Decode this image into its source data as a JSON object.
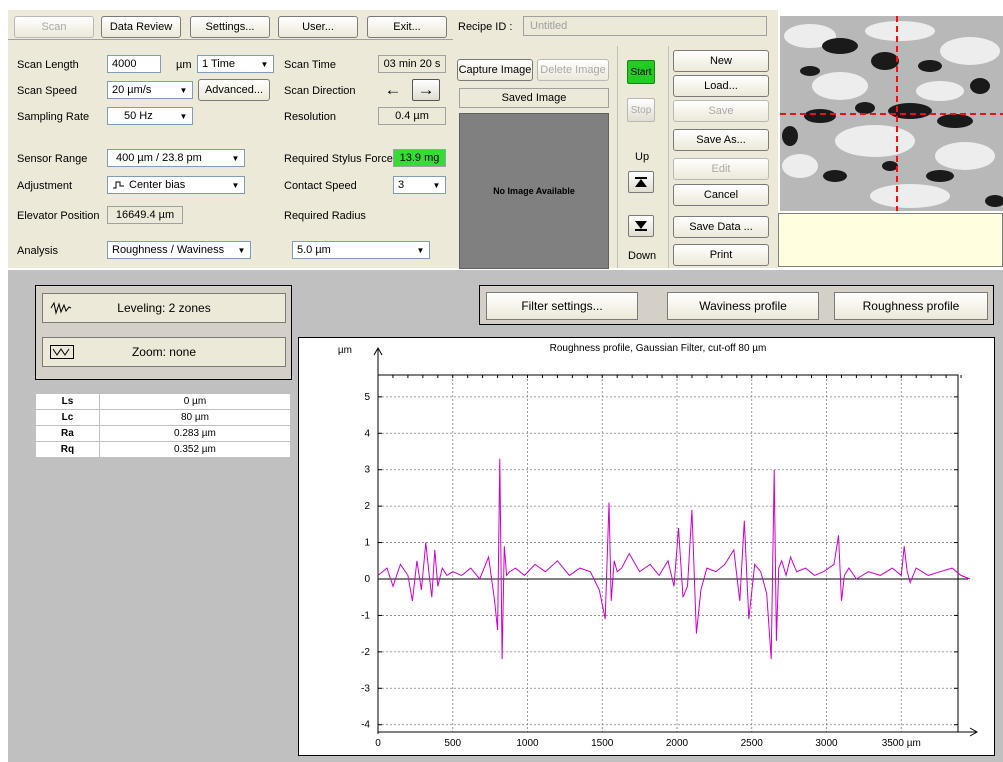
{
  "toolbar": {
    "scan": "Scan",
    "data_review": "Data Review",
    "settings": "Settings...",
    "user": "User...",
    "exit": "Exit...",
    "recipe_label": "Recipe ID :",
    "recipe_value": "Untitled"
  },
  "params": {
    "scan_length_label": "Scan Length",
    "scan_length_value": "4000",
    "scan_length_unit": "µm",
    "repeat_value": "1 Time",
    "scan_speed_label": "Scan Speed",
    "scan_speed_value": "20 µm/s",
    "advanced": "Advanced...",
    "sampling_rate_label": "Sampling Rate",
    "sampling_rate_value": "50 Hz",
    "sensor_range_label": "Sensor Range",
    "sensor_range_value": "400 µm / 23.8 pm",
    "adjustment_label": "Adjustment",
    "adjustment_value": "Center bias",
    "elevator_label": "Elevator Position",
    "elevator_value": "16649.4 µm",
    "analysis_label": "Analysis",
    "analysis_value": "Roughness / Waviness",
    "scan_time_label": "Scan Time",
    "scan_time_value": "03 min 20 s",
    "scan_direction_label": "Scan Direction",
    "resolution_label": "Resolution",
    "resolution_value": "0.4 µm",
    "stylus_force_label": "Required Stylus Force",
    "stylus_force_value": "13.9 mg",
    "contact_speed_label": "Contact Speed",
    "contact_speed_value": "3",
    "radius_label": "Required Radius",
    "radius_value": "5.0 µm"
  },
  "image_panel": {
    "capture": "Capture Image",
    "delete": "Delete Image",
    "saved_title": "Saved Image",
    "no_image": "No Image Available"
  },
  "control": {
    "start": "Start",
    "stop": "Stop",
    "up": "Up",
    "down": "Down"
  },
  "recipe_buttons": {
    "new": "New",
    "load": "Load...",
    "save": "Save",
    "save_as": "Save As...",
    "edit": "Edit",
    "cancel": "Cancel",
    "save_data": "Save Data ...",
    "print": "Print"
  },
  "lower": {
    "leveling": "Leveling: 2 zones",
    "zoom": "Zoom: none",
    "filter_settings": "Filter settings...",
    "waviness_profile": "Waviness profile",
    "roughness_profile": "Roughness profile"
  },
  "results": [
    {
      "label": "Ls",
      "value": "0 µm"
    },
    {
      "label": "Lc",
      "value": "80 µm"
    },
    {
      "label": "Ra",
      "value": "0.283 µm"
    },
    {
      "label": "Rq",
      "value": "0.352 µm"
    }
  ],
  "colors": {
    "panel": "#ece9d8",
    "plot_line": "#cc00cc",
    "start_green": "#22cc22",
    "force_green": "#33dd33",
    "note_yellow": "#ffffe0"
  },
  "chart_data": {
    "type": "line",
    "title": "Roughness profile, Gaussian Filter, cut-off 80 µm",
    "ylabel": "µm",
    "xlabel": "",
    "x_tick_labels": [
      "0",
      "500",
      "1000",
      "1500",
      "2000",
      "2500",
      "3000",
      "3500 µm"
    ],
    "x_ticks": [
      0,
      500,
      1000,
      1500,
      2000,
      2500,
      3000,
      3500
    ],
    "y_ticks": [
      5,
      4,
      3,
      2,
      1,
      0,
      -1,
      -2,
      -3,
      -4
    ],
    "xlim": [
      0,
      4000
    ],
    "ylim": [
      -4.2,
      5.6
    ],
    "grid": true,
    "series": [
      {
        "x": [
          0,
          60,
          100,
          150,
          200,
          230,
          260,
          290,
          320,
          340,
          360,
          380,
          400,
          430,
          460,
          500,
          560,
          620,
          680,
          740,
          780,
          800,
          815,
          830,
          845,
          860,
          880,
          920,
          980,
          1050,
          1120,
          1200,
          1280,
          1350,
          1420,
          1480,
          1520,
          1545,
          1560,
          1580,
          1600,
          1630,
          1680,
          1750,
          1820,
          1880,
          1940,
          1980,
          2010,
          2040,
          2070,
          2100,
          2130,
          2160,
          2200,
          2260,
          2320,
          2380,
          2420,
          2450,
          2480,
          2520,
          2560,
          2600,
          2630,
          2650,
          2665,
          2680,
          2700,
          2730,
          2760,
          2800,
          2860,
          2920,
          2980,
          3050,
          3080,
          3100,
          3120,
          3150,
          3200,
          3280,
          3360,
          3440,
          3500,
          3520,
          3540,
          3560,
          3600,
          3680,
          3760,
          3840,
          3900,
          3960
        ],
        "y": [
          0.1,
          0.3,
          -0.2,
          0.4,
          0.1,
          -0.6,
          0.5,
          -0.3,
          1.0,
          0.2,
          -0.5,
          0.8,
          -0.2,
          0.3,
          0.1,
          0.2,
          0.1,
          0.3,
          0.0,
          0.6,
          -0.6,
          -1.4,
          3.3,
          -2.2,
          0.9,
          0.1,
          0.2,
          0.3,
          0.1,
          0.4,
          0.2,
          0.5,
          0.1,
          0.3,
          0.2,
          -0.3,
          -1.1,
          2.1,
          -0.6,
          0.5,
          0.2,
          0.3,
          0.7,
          0.2,
          0.4,
          0.1,
          0.5,
          -0.2,
          1.4,
          -0.5,
          -0.2,
          1.9,
          -1.5,
          -0.3,
          0.3,
          0.2,
          0.4,
          0.8,
          -0.6,
          1.6,
          -1.1,
          0.4,
          0.2,
          -0.4,
          -2.2,
          3.0,
          -1.7,
          0.3,
          0.5,
          0.1,
          0.6,
          0.2,
          0.3,
          0.1,
          0.2,
          0.4,
          1.2,
          -0.6,
          0.1,
          0.3,
          0.0,
          0.2,
          0.1,
          0.3,
          0.1,
          0.9,
          0.2,
          -0.1,
          0.3,
          0.1,
          0.2,
          0.3,
          0.1,
          0.0
        ]
      }
    ]
  }
}
